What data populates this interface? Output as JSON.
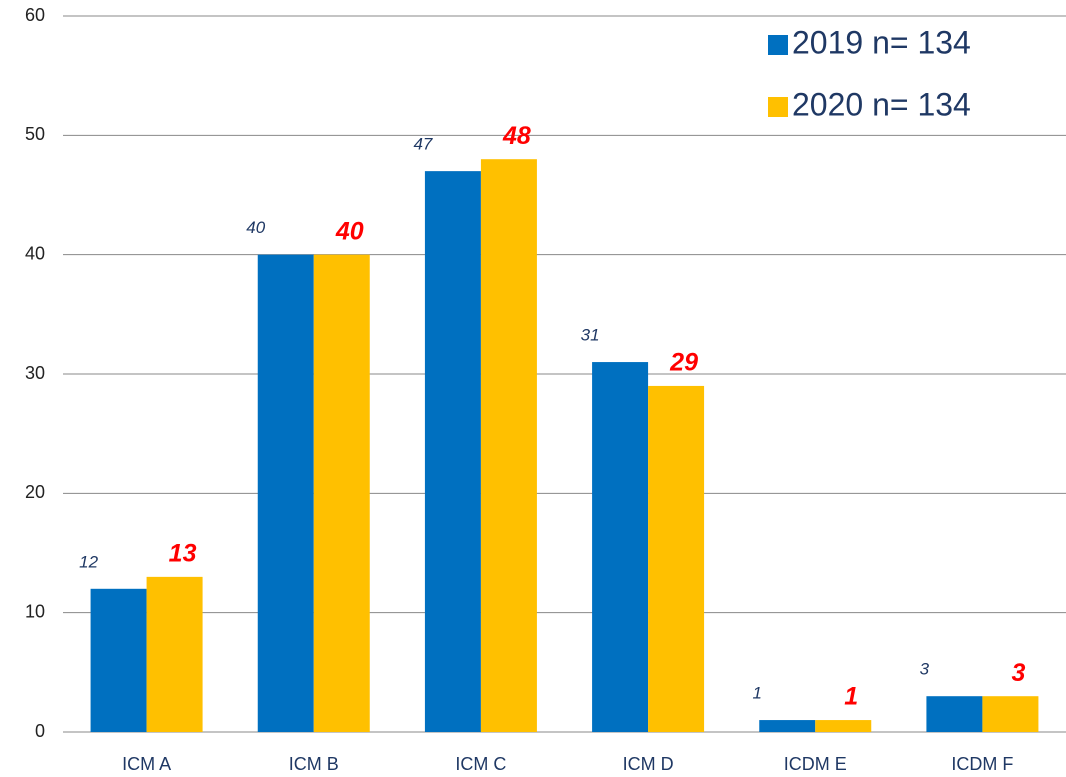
{
  "chart_data": {
    "type": "bar",
    "categories": [
      "ICM A",
      "ICM B",
      "ICM C",
      "ICM D",
      "ICDM E",
      "ICDM F"
    ],
    "series": [
      {
        "name": "2019 n= 134",
        "color": "#0070c0",
        "values": [
          12,
          40,
          47,
          31,
          1,
          3
        ]
      },
      {
        "name": "2020 n= 134",
        "color": "#ffc000",
        "values": [
          13,
          40,
          48,
          29,
          1,
          3
        ]
      }
    ],
    "ylim": [
      0,
      60
    ],
    "yticks": [
      0,
      10,
      20,
      30,
      40,
      50,
      60
    ],
    "grid": true,
    "legend": "top-right"
  }
}
